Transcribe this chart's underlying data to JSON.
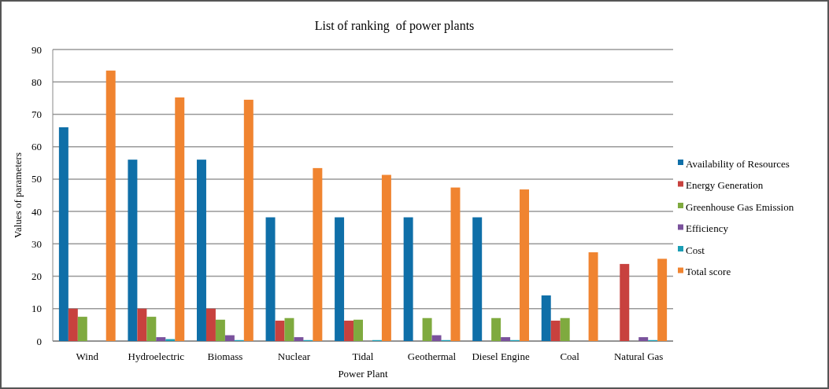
{
  "chart_data": {
    "type": "bar",
    "title": "List of ranking  of power plants",
    "xlabel": "Power Plant",
    "ylabel": "Values of parameters",
    "categories": [
      "Wind",
      "Hydroelectric",
      "Biomass",
      "Nuclear",
      "Tidal",
      "Geothermal",
      "Diesel Engine",
      "Coal",
      "Natural Gas"
    ],
    "series": [
      {
        "name": "Availability of Resources",
        "color": "#0f6fa8",
        "values": [
          66,
          56,
          56,
          38.2,
          38.2,
          38.2,
          38.2,
          14.1,
          0
        ]
      },
      {
        "name": "Energy Generation",
        "color": "#c8413e",
        "values": [
          10,
          10,
          10,
          6.3,
          6.3,
          0,
          0,
          6.3,
          23.8
        ]
      },
      {
        "name": "Greenhouse Gas Emission",
        "color": "#7faa3f",
        "values": [
          7.5,
          7.5,
          6.6,
          7.1,
          6.6,
          7.1,
          7.1,
          7.1,
          0
        ]
      },
      {
        "name": "Efficiency",
        "color": "#7a529c",
        "values": [
          0,
          1.2,
          1.8,
          1.2,
          0,
          1.8,
          1.2,
          0,
          1.2
        ]
      },
      {
        "name": "Cost",
        "color": "#1b9eb5",
        "values": [
          0,
          0.6,
          0.3,
          0.3,
          0.3,
          0.3,
          0.3,
          0,
          0.3
        ]
      },
      {
        "name": "Total score",
        "color": "#f08430",
        "values": [
          83.5,
          75.2,
          74.5,
          53.4,
          51.3,
          47.4,
          46.8,
          27.4,
          25.4
        ]
      }
    ],
    "ylim": [
      0,
      90
    ],
    "yticks": [
      0,
      10,
      20,
      30,
      40,
      50,
      60,
      70,
      80,
      90
    ],
    "grid": "y",
    "legend": "right"
  }
}
